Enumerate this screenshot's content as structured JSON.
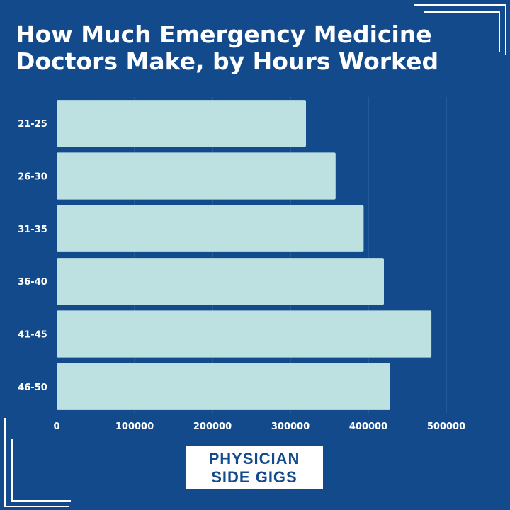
{
  "title_lines": [
    "How Much Emergency Medicine",
    "Doctors Make, by Hours Worked"
  ],
  "logo_lines": [
    "PHYSICIAN",
    "SIDE GIGS"
  ],
  "colors": {
    "background": "#134a8c",
    "bar": "#bde0e0",
    "grid": "#3a68a3",
    "text": "#ffffff"
  },
  "chart_data": {
    "type": "bar",
    "orientation": "horizontal",
    "categories": [
      "21-25",
      "26-30",
      "31-35",
      "36-40",
      "41-45",
      "46-50"
    ],
    "values": [
      320000,
      358000,
      394000,
      420000,
      481000,
      428000
    ],
    "x_ticks": [
      0,
      100000,
      200000,
      300000,
      400000,
      500000
    ],
    "xlim": [
      0,
      500000
    ],
    "title": "How Much Emergency Medicine Doctors Make, by Hours Worked",
    "xlabel": "",
    "ylabel": "",
    "grid": true
  }
}
